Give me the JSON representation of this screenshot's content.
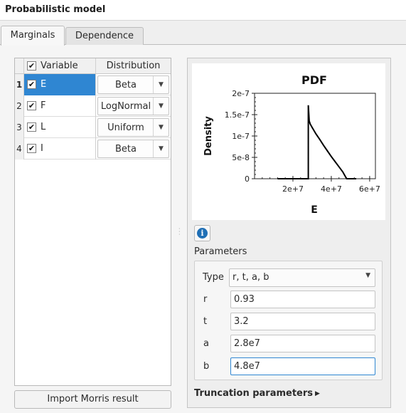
{
  "window": {
    "title": "Probabilistic model"
  },
  "tabs": [
    {
      "label": "Marginals",
      "active": true
    },
    {
      "label": "Dependence",
      "active": false
    }
  ],
  "table": {
    "headers": {
      "variable": "Variable",
      "distribution": "Distribution"
    },
    "header_checked": true,
    "rows": [
      {
        "num": "1",
        "name": "E",
        "checked": true,
        "distribution": "Beta",
        "selected": true
      },
      {
        "num": "2",
        "name": "F",
        "checked": true,
        "distribution": "LogNormal",
        "selected": false
      },
      {
        "num": "3",
        "name": "L",
        "checked": true,
        "distribution": "Uniform",
        "selected": false
      },
      {
        "num": "4",
        "name": "I",
        "checked": true,
        "distribution": "Beta",
        "selected": false
      }
    ],
    "checkmark": "✔"
  },
  "import_button": "Import Morris result",
  "info_icon": {
    "icon": "info-icon",
    "glyph": "i"
  },
  "parameters": {
    "section_label": "Parameters",
    "type_label": "Type",
    "type_value": "r, t, a, b",
    "fields": [
      {
        "label": "r",
        "value": "0.93"
      },
      {
        "label": "t",
        "value": "3.2"
      },
      {
        "label": "a",
        "value": "2.8e7"
      },
      {
        "label": "b",
        "value": "4.8e7"
      }
    ]
  },
  "truncation_label": "Truncation parameters",
  "colors": {
    "selection": "#2f86d2",
    "info": "#1f6fb5"
  },
  "chart_data": {
    "type": "line",
    "title": "PDF",
    "xlabel": "E",
    "ylabel": "Density",
    "xlim": [
      0,
      63000000.0
    ],
    "ylim": [
      0,
      2e-07
    ],
    "xticks": [
      {
        "value": 20000000.0,
        "label": "2e+7"
      },
      {
        "value": 40000000.0,
        "label": "4e+7"
      },
      {
        "value": 60000000.0,
        "label": "6e+7"
      }
    ],
    "yticks": [
      {
        "value": 0,
        "label": "0"
      },
      {
        "value": 5e-08,
        "label": "5e-8"
      },
      {
        "value": 1e-07,
        "label": "1e-7"
      },
      {
        "value": 1.5e-07,
        "label": "1.5e-7"
      },
      {
        "value": 2e-07,
        "label": "2e-7"
      }
    ],
    "grid": false,
    "series": [
      {
        "x": [
          12000000.0,
          28000000.0,
          28000000.0,
          28500000.0,
          29000000.0,
          30000000.0,
          32000000.0,
          34000000.0,
          36000000.0,
          38000000.0,
          40000000.0,
          42000000.0,
          44000000.0,
          46000000.0,
          47000000.0,
          48000000.0,
          53000000.0
        ],
        "y": [
          0,
          0,
          1.72e-07,
          1.35e-07,
          1.28e-07,
          1.2e-07,
          1.05e-07,
          9.2e-08,
          7.8e-08,
          6.5e-08,
          5.2e-08,
          4e-08,
          2.8e-08,
          1.6e-08,
          8e-09,
          0,
          0
        ]
      }
    ]
  }
}
